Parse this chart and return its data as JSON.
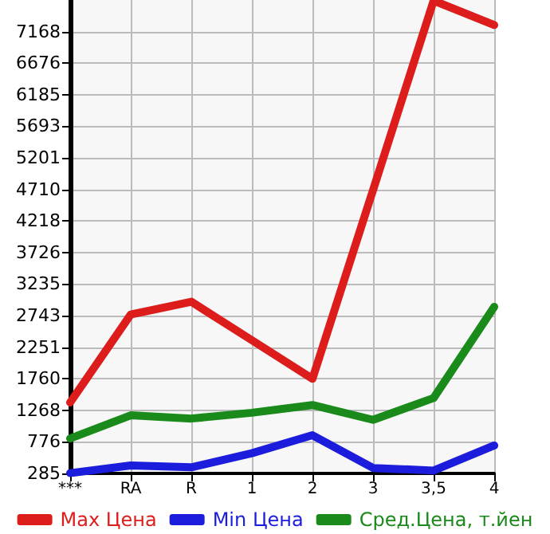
{
  "chart_data": {
    "type": "line",
    "categories": [
      "***",
      "RA",
      "R",
      "1",
      "2",
      "3",
      "3,5",
      "4"
    ],
    "series": [
      {
        "name": "Max Цена",
        "color": "#dd1c1c",
        "values": [
          1390,
          2760,
          2960,
          2360,
          1760,
          4700,
          7650,
          7270
        ]
      },
      {
        "name": "Min Цена",
        "color": "#1c1cdd",
        "values": [
          290,
          410,
          380,
          600,
          880,
          370,
          330,
          720
        ]
      },
      {
        "name": "Сред.Цена, т.йен",
        "color": "#1a8a1a",
        "values": [
          830,
          1190,
          1140,
          1230,
          1350,
          1120,
          1460,
          2880
        ]
      }
    ],
    "ylim": [
      285,
      7660
    ],
    "yticks": [
      285,
      776,
      1268,
      1760,
      2251,
      2743,
      3235,
      3726,
      4218,
      4710,
      5201,
      5693,
      6185,
      6676,
      7168
    ],
    "grid": true,
    "legend": "bottom",
    "marker": "none",
    "line_style": "solid"
  }
}
